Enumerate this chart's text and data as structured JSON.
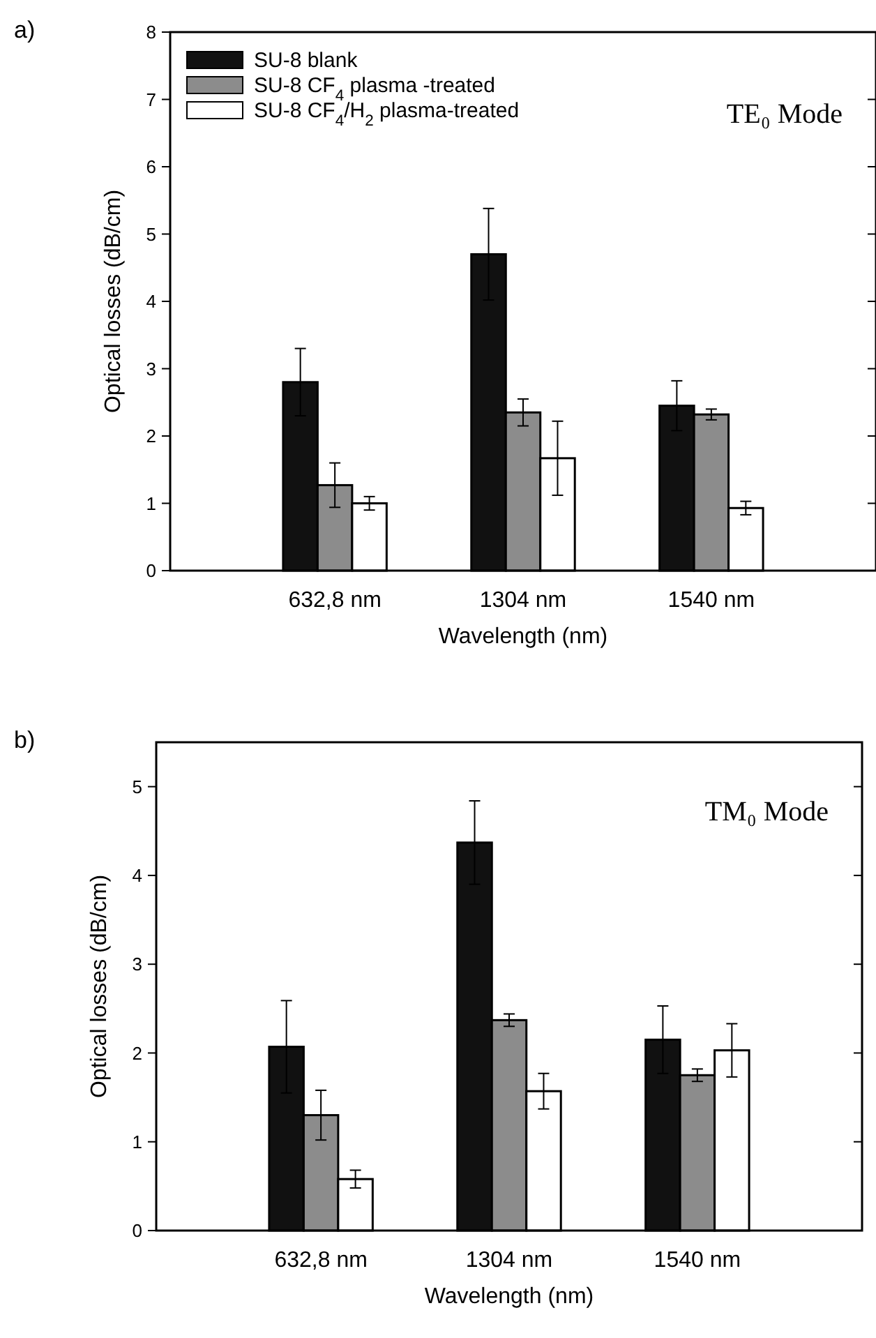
{
  "chart_data": [
    {
      "type": "bar",
      "title": "a)",
      "xlabel": "Wavelength (nm)",
      "ylabel": "Optical losses (dB/cm)",
      "annotations": [
        "TE₀ Mode"
      ],
      "categories": [
        "632,8 nm",
        "1304 nm",
        "1540 nm"
      ],
      "ylim": [
        0,
        8
      ],
      "yticks": [
        0,
        1,
        2,
        3,
        4,
        5,
        6,
        7,
        8
      ],
      "legend": "top left",
      "series": [
        {
          "name": "SU-8 blank",
          "color": "#111111",
          "values": [
            2.8,
            4.7,
            2.45
          ],
          "errors": [
            0.5,
            0.68,
            0.37
          ]
        },
        {
          "name": "SU-8 CF$_{4}$ plasma -treated",
          "color": "#8c8c8c",
          "values": [
            1.27,
            2.35,
            2.32
          ],
          "errors": [
            0.33,
            0.2,
            0.08
          ]
        },
        {
          "name": "SU-8 CF$_{4}$/H$_{2}$ plasma-treated",
          "color": "#ffffff",
          "values": [
            1.0,
            1.67,
            0.93
          ],
          "errors": [
            0.1,
            0.55,
            0.1
          ]
        }
      ]
    },
    {
      "type": "bar",
      "title": "b)",
      "xlabel": "Wavelength (nm)",
      "ylabel": "Optical losses (dB/cm)",
      "annotations": [
        "TM₀ Mode"
      ],
      "categories": [
        "632,8 nm",
        "1304 nm",
        "1540 nm"
      ],
      "ylim": [
        0,
        5.5
      ],
      "yticks": [
        0,
        1,
        2,
        3,
        4,
        5
      ],
      "series": [
        {
          "color": "#111111",
          "values": [
            2.07,
            4.37,
            2.15
          ],
          "errors": [
            0.52,
            0.47,
            0.38
          ]
        },
        {
          "color": "#8c8c8c",
          "values": [
            1.3,
            2.37,
            1.75
          ],
          "errors": [
            0.28,
            0.07,
            0.07
          ]
        },
        {
          "color": "#ffffff",
          "values": [
            0.58,
            1.57,
            2.03
          ],
          "errors": [
            0.1,
            0.2,
            0.3
          ]
        }
      ]
    }
  ]
}
